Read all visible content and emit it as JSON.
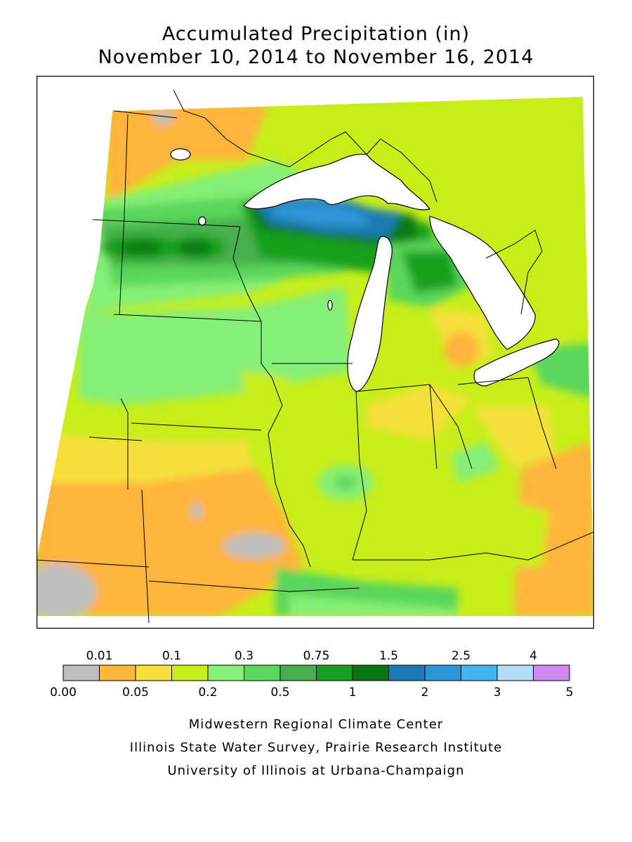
{
  "title": {
    "line1": "Accumulated Precipitation (in)",
    "line2": "November 10, 2014 to November 16, 2014"
  },
  "legend": {
    "bins": [
      {
        "color": "#bebebe"
      },
      {
        "color": "#ffb43a"
      },
      {
        "color": "#f5e03a"
      },
      {
        "color": "#c8ee1a"
      },
      {
        "color": "#85ef78"
      },
      {
        "color": "#5ad65a"
      },
      {
        "color": "#47b04d"
      },
      {
        "color": "#14a01e"
      },
      {
        "color": "#087814"
      },
      {
        "color": "#1e7ab4"
      },
      {
        "color": "#2e96d8"
      },
      {
        "color": "#44b4ee"
      },
      {
        "color": "#b4dcf8"
      },
      {
        "color": "#cc88ee"
      }
    ],
    "top_labels": [
      "0.01",
      "0.1",
      "0.3",
      "0.75",
      "1.5",
      "2.5",
      "4"
    ],
    "bottom_labels": [
      "0.00",
      "0.05",
      "0.2",
      "0.5",
      "1",
      "2",
      "3",
      "5"
    ]
  },
  "credits": {
    "line1": "Midwestern Regional Climate Center",
    "line2": "Illinois State Water Survey, Prairie Research Institute",
    "line3": "University of Illinois at Urbana-Champaign"
  }
}
